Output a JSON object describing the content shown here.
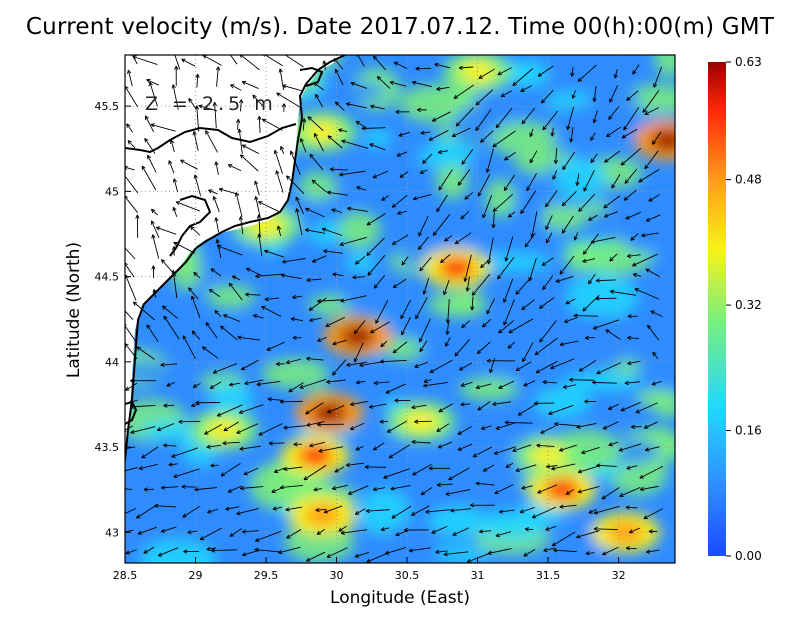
{
  "title": "Current velocity (m/s). Date 2017.07.12. Time 00(h):00(m) GMT",
  "depth_label": "Z = 2.5 m",
  "chart_data": {
    "type": "heatmap",
    "title": "Current velocity (m/s). Date 2017.07.12. Time 00(h):00(m) GMT",
    "xlabel": "Longitude (East)",
    "ylabel": "Latitude (North)",
    "xlim": [
      28.5,
      32.4
    ],
    "ylim": [
      42.82,
      45.8
    ],
    "xticks": [
      "28.5",
      "29",
      "29.5",
      "30",
      "30.5",
      "31",
      "31.5",
      "32"
    ],
    "yticks": [
      "43",
      "43.5",
      "44",
      "44.5",
      "45",
      "45.5"
    ],
    "grid": true,
    "colorbar": {
      "range": [
        0,
        0.63
      ],
      "ticks": [
        "0.00",
        "0.16",
        "0.32",
        "0.48",
        "0.63"
      ],
      "colors": [
        "#1a4cff",
        "#2f8cff",
        "#22d8ff",
        "#7cf07a",
        "#f7f21a",
        "#ff9d1a",
        "#ff2a0a",
        "#9a0000"
      ]
    },
    "hotspots": [
      {
        "lon": 30.15,
        "lat": 44.15,
        "speed": 0.6
      },
      {
        "lon": 29.95,
        "lat": 43.7,
        "speed": 0.62
      },
      {
        "lon": 29.85,
        "lat": 43.45,
        "speed": 0.55
      },
      {
        "lon": 29.9,
        "lat": 43.1,
        "speed": 0.45
      },
      {
        "lon": 30.85,
        "lat": 44.55,
        "speed": 0.55
      },
      {
        "lon": 31.6,
        "lat": 43.25,
        "speed": 0.55
      },
      {
        "lon": 31.5,
        "lat": 43.45,
        "speed": 0.4
      },
      {
        "lon": 32.35,
        "lat": 45.3,
        "speed": 0.6
      },
      {
        "lon": 32.05,
        "lat": 43.0,
        "speed": 0.45
      },
      {
        "lon": 29.5,
        "lat": 44.8,
        "speed": 0.4
      },
      {
        "lon": 29.9,
        "lat": 45.35,
        "speed": 0.4
      },
      {
        "lon": 31.0,
        "lat": 45.7,
        "speed": 0.35
      },
      {
        "lon": 29.2,
        "lat": 43.6,
        "speed": 0.35
      },
      {
        "lon": 30.6,
        "lat": 43.65,
        "speed": 0.35
      }
    ]
  }
}
